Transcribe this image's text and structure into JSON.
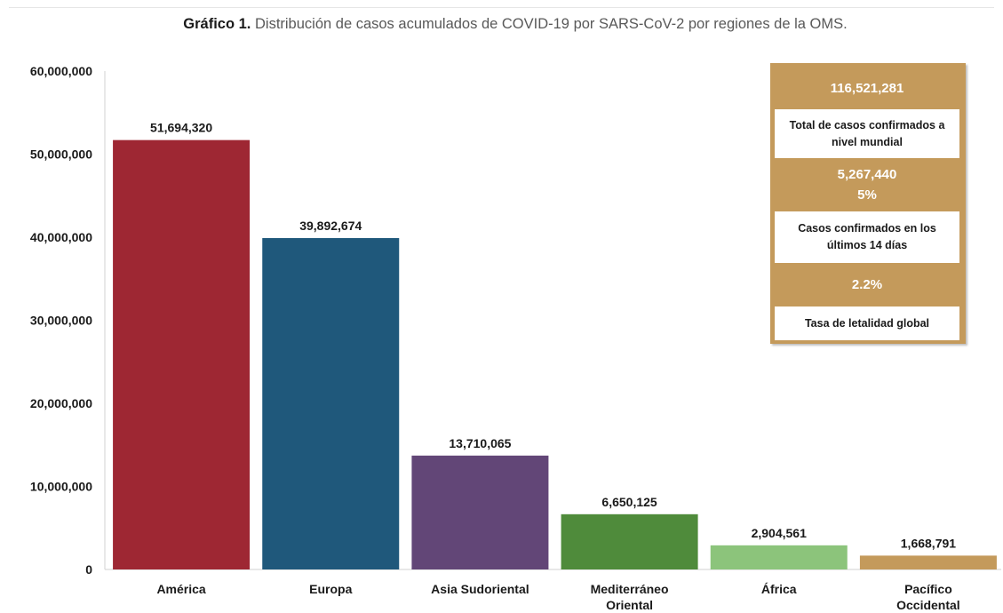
{
  "title": {
    "lead": "Gráfico 1.",
    "text": "Distribución de casos acumulados de COVID-19 por SARS-CoV-2 por regiones de la OMS."
  },
  "summary": {
    "total_cases": "116,521,281",
    "total_cases_label": "Total de casos confirmados a nivel mundial",
    "recent_cases": "5,267,440",
    "recent_pct": "5%",
    "recent_label": "Casos confirmados en los últimos 14 días",
    "lethality": "2.2%",
    "lethality_label": "Tasa de letalidad global"
  },
  "colors": {
    "summary_gold": "#c49a5b",
    "america": "#9e2733",
    "europa": "#1f587b",
    "asia": "#624677",
    "mediterraneo": "#4f8b3b",
    "africa": "#8cc47b",
    "pacifico": "#c49a5b"
  },
  "chart_data": {
    "type": "bar",
    "categories": [
      "América",
      "Europa",
      "Asia Sudoriental",
      "Mediterráneo Oriental",
      "África",
      "Pacífico Occidental"
    ],
    "values": [
      51694320,
      39892674,
      13710065,
      6650125,
      2904561,
      1668791
    ],
    "data_labels": [
      "51,694,320",
      "39,892,674",
      "13,710,065",
      "6,650,125",
      "2,904,561",
      "1,668,791"
    ],
    "bar_colors": [
      "#9e2733",
      "#1f587b",
      "#624677",
      "#4f8b3b",
      "#8cc47b",
      "#c49a5b"
    ],
    "ylim": [
      0,
      60000000
    ],
    "yticks": [
      0,
      10000000,
      20000000,
      30000000,
      40000000,
      50000000,
      60000000
    ],
    "ytick_labels": [
      "0",
      "10,000,000",
      "20,000,000",
      "30,000,000",
      "40,000,000",
      "50,000,000",
      "60,000,000"
    ],
    "xlabel": "",
    "ylabel": "",
    "grid": false,
    "legend": "none"
  }
}
